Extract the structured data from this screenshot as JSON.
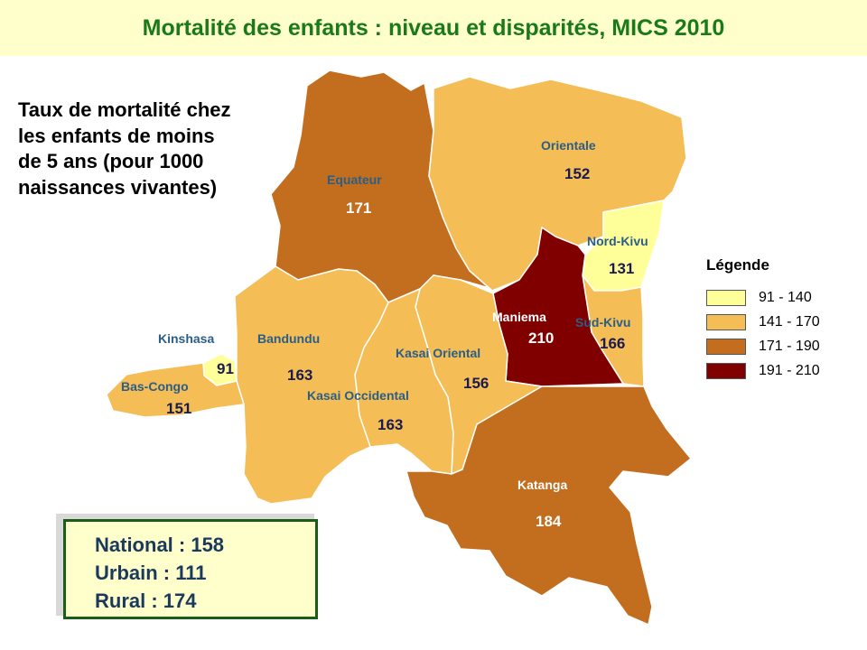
{
  "title": "Mortalité des enfants : niveau et disparités, MICS 2010",
  "subtitle": "Taux de mortalité chez\nles enfants de moins\nde 5 ans (pour 1000\nnaissances vivantes)",
  "colors": {
    "class_91_140": "#ffff99",
    "class_141_170": "#f4bd56",
    "class_171_190": "#c26e1e",
    "class_191_210": "#800000",
    "province_label": "#2b5e86",
    "value_label": "#1a1a4e",
    "title": "#1a7a1a",
    "title_background": "#ffffcc"
  },
  "legend": {
    "title": "Légende",
    "items": [
      {
        "label": "91 - 140",
        "color": "#ffff99"
      },
      {
        "label": "141 - 170",
        "color": "#f4bd56"
      },
      {
        "label": "171 - 190",
        "color": "#c26e1e"
      },
      {
        "label": "191 - 210",
        "color": "#800000"
      }
    ]
  },
  "provinces": [
    {
      "name": "Equateur",
      "value": "171"
    },
    {
      "name": "Orientale",
      "value": "152"
    },
    {
      "name": "Nord-Kivu",
      "value": "131"
    },
    {
      "name": "Sud-Kivu",
      "value": "166"
    },
    {
      "name": "Maniema",
      "value": "210"
    },
    {
      "name": "Kasai Oriental",
      "value": "156"
    },
    {
      "name": "Kasai Occidental",
      "value": "163"
    },
    {
      "name": "Bandundu",
      "value": "163"
    },
    {
      "name": "Kinshasa",
      "value": "91"
    },
    {
      "name": "Bas-Congo",
      "value": "151"
    },
    {
      "name": "Katanga",
      "value": "184"
    }
  ],
  "stats": {
    "national": "National : 158",
    "urbain": "Urbain : 111",
    "rural": "Rural : 174"
  }
}
